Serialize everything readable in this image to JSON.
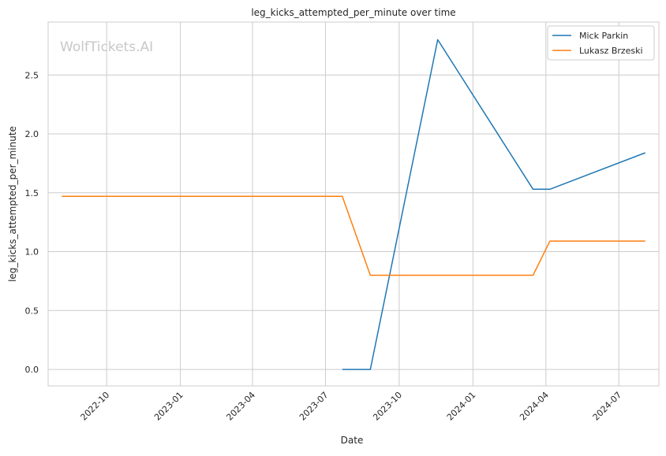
{
  "watermark": "WolfTickets.AI",
  "chart_data": {
    "type": "line",
    "title": "leg_kicks_attempted_per_minute over time",
    "xlabel": "Date",
    "ylabel": "leg_kicks_attempted_per_minute",
    "x_ticks": [
      "2022-10",
      "2023-01",
      "2023-04",
      "2023-07",
      "2023-10",
      "2024-01",
      "2024-04",
      "2024-07"
    ],
    "y_ticks": [
      "0.0",
      "0.5",
      "1.0",
      "1.5",
      "2.0",
      "2.5"
    ],
    "ylim": [
      -0.14,
      2.95
    ],
    "xlim": [
      "2022-07-20",
      "2024-08-20"
    ],
    "grid": true,
    "legend_position": "top-right",
    "series": [
      {
        "name": "Mick Parkin",
        "color": "#1f77b4",
        "points": [
          {
            "x": "2023-07-22",
            "y": 0.0
          },
          {
            "x": "2023-08-26",
            "y": 0.0
          },
          {
            "x": "2023-11-18",
            "y": 2.8
          },
          {
            "x": "2024-03-16",
            "y": 1.53
          },
          {
            "x": "2024-04-06",
            "y": 1.53
          },
          {
            "x": "2024-08-03",
            "y": 1.84
          }
        ]
      },
      {
        "name": "Lukasz Brzeski",
        "color": "#ff7f0e",
        "points": [
          {
            "x": "2022-08-06",
            "y": 1.47
          },
          {
            "x": "2023-07-22",
            "y": 1.47
          },
          {
            "x": "2023-08-26",
            "y": 0.8
          },
          {
            "x": "2024-03-16",
            "y": 0.8
          },
          {
            "x": "2024-04-06",
            "y": 1.09
          },
          {
            "x": "2024-08-03",
            "y": 1.09
          }
        ]
      }
    ]
  }
}
